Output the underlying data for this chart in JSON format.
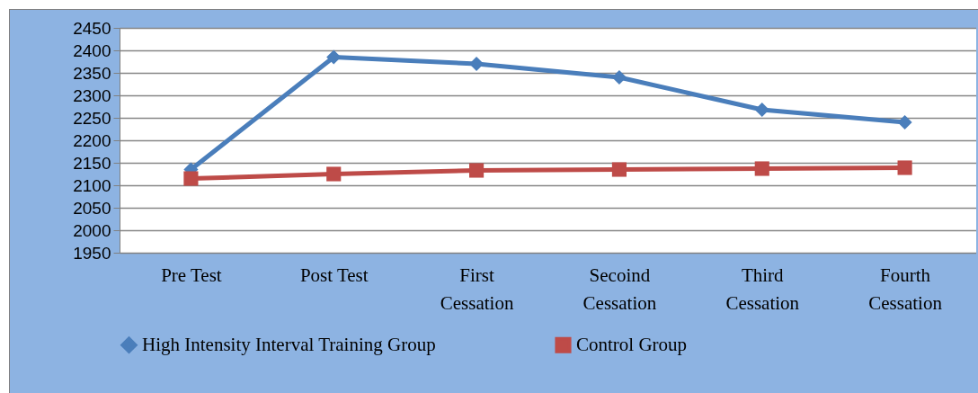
{
  "chart_data": {
    "type": "line",
    "categories": [
      "Pre Test",
      "Post Test",
      "First Cessation",
      "Secoind Cessation",
      "Third Cessation",
      "Fourth Cessation"
    ],
    "series": [
      {
        "name": "High Intensity Interval  Training Group",
        "color": "#4a7ebb",
        "marker": "diamond",
        "values": [
          2135,
          2385,
          2370,
          2340,
          2268,
          2240
        ]
      },
      {
        "name": "Control Group",
        "color": "#be4b48",
        "marker": "square",
        "values": [
          2115,
          2125,
          2133,
          2135,
          2137,
          2139
        ]
      }
    ],
    "ylim": [
      1950,
      2450
    ],
    "yticks": [
      1950,
      2000,
      2050,
      2100,
      2150,
      2200,
      2250,
      2300,
      2350,
      2400,
      2450
    ],
    "grid": "y",
    "legend": "bottom",
    "line_style": "solid"
  }
}
